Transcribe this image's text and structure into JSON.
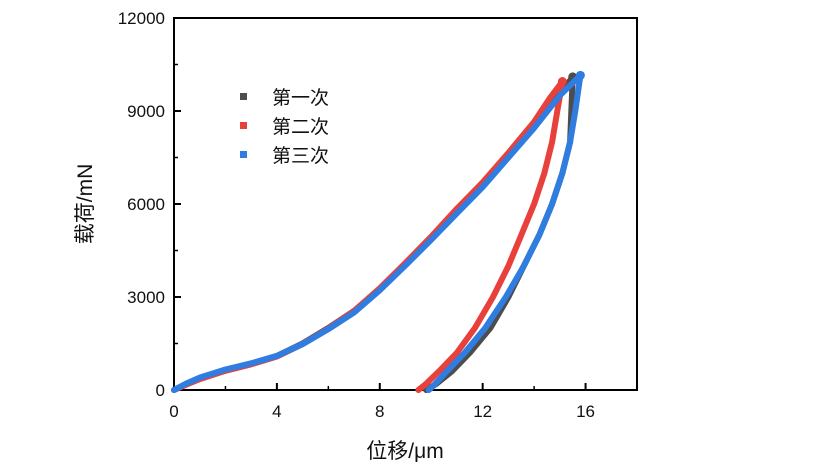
{
  "chart_data": {
    "type": "line",
    "xlabel": "位移/μm",
    "ylabel": "载荷/mN",
    "xlim": [
      0,
      18
    ],
    "ylim": [
      0,
      12000
    ],
    "x_ticks": [
      "0",
      "4",
      "8",
      "12",
      "16"
    ],
    "y_ticks": [
      "0",
      "3000",
      "6000",
      "9000",
      "12000"
    ],
    "grid": false,
    "legend_position": "upper-left",
    "series": [
      {
        "name": "第一次",
        "color": "#4d4d4d",
        "points": [
          [
            0,
            0
          ],
          [
            0.5,
            200
          ],
          [
            1,
            380
          ],
          [
            2,
            650
          ],
          [
            3,
            850
          ],
          [
            4,
            1100
          ],
          [
            5,
            1500
          ],
          [
            6,
            2000
          ],
          [
            7,
            2550
          ],
          [
            8,
            3250
          ],
          [
            9,
            4050
          ],
          [
            10,
            4900
          ],
          [
            11,
            5800
          ],
          [
            12,
            6650
          ],
          [
            13,
            7600
          ],
          [
            14,
            8550
          ],
          [
            15,
            9550
          ],
          [
            15.5,
            10100
          ],
          [
            15.4,
            8000
          ],
          [
            15.1,
            7000
          ],
          [
            14.7,
            6000
          ],
          [
            14.2,
            5000
          ],
          [
            13.6,
            4000
          ],
          [
            13.0,
            3000
          ],
          [
            12.3,
            2000
          ],
          [
            11.5,
            1200
          ],
          [
            10.8,
            600
          ],
          [
            10.2,
            200
          ],
          [
            9.8,
            0
          ]
        ]
      },
      {
        "name": "第二次",
        "color": "#e8403a",
        "points": [
          [
            0,
            0
          ],
          [
            0.5,
            180
          ],
          [
            1,
            350
          ],
          [
            2,
            620
          ],
          [
            3,
            830
          ],
          [
            4,
            1080
          ],
          [
            5,
            1480
          ],
          [
            6,
            1980
          ],
          [
            7,
            2550
          ],
          [
            8,
            3280
          ],
          [
            9,
            4100
          ],
          [
            10,
            4950
          ],
          [
            11,
            5850
          ],
          [
            12,
            6700
          ],
          [
            13,
            7650
          ],
          [
            14,
            8650
          ],
          [
            14.6,
            9400
          ],
          [
            15.1,
            9950
          ],
          [
            14.9,
            9000
          ],
          [
            14.7,
            8000
          ],
          [
            14.4,
            7000
          ],
          [
            14.0,
            6000
          ],
          [
            13.5,
            5000
          ],
          [
            13.0,
            4000
          ],
          [
            12.4,
            3000
          ],
          [
            11.7,
            2000
          ],
          [
            11.0,
            1200
          ],
          [
            10.3,
            600
          ],
          [
            9.8,
            200
          ],
          [
            9.5,
            0
          ]
        ]
      },
      {
        "name": "第三次",
        "color": "#2f7de0",
        "points": [
          [
            0,
            0
          ],
          [
            0.5,
            220
          ],
          [
            1,
            400
          ],
          [
            2,
            660
          ],
          [
            3,
            860
          ],
          [
            4,
            1100
          ],
          [
            5,
            1480
          ],
          [
            6,
            1960
          ],
          [
            7,
            2500
          ],
          [
            8,
            3220
          ],
          [
            9,
            4020
          ],
          [
            10,
            4850
          ],
          [
            11,
            5700
          ],
          [
            12,
            6550
          ],
          [
            13,
            7500
          ],
          [
            14,
            8450
          ],
          [
            15,
            9500
          ],
          [
            15.8,
            10150
          ],
          [
            15.6,
            9000
          ],
          [
            15.4,
            8000
          ],
          [
            15.1,
            7000
          ],
          [
            14.7,
            6000
          ],
          [
            14.2,
            5000
          ],
          [
            13.6,
            4000
          ],
          [
            12.9,
            3000
          ],
          [
            12.1,
            2000
          ],
          [
            11.3,
            1200
          ],
          [
            10.6,
            600
          ],
          [
            10.1,
            150
          ],
          [
            9.9,
            0
          ]
        ]
      }
    ]
  }
}
